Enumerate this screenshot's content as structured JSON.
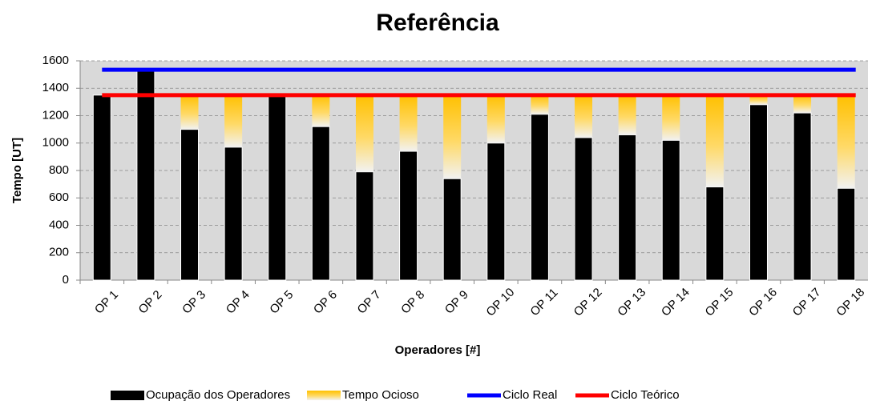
{
  "chart_data": {
    "type": "bar",
    "title": "Referência",
    "x_label": "Operadores [#]",
    "y_label": "Tempo [UT]",
    "categories": [
      "OP 1",
      "OP 2",
      "OP 3",
      "OP 4",
      "OP 5",
      "OP 6",
      "OP 7",
      "OP 8",
      "OP 9",
      "OP 10",
      "OP 11",
      "OP 12",
      "OP 13",
      "OP 14",
      "OP 15",
      "OP 16",
      "OP 17",
      "OP 18"
    ],
    "series": [
      {
        "name": "Ocupação dos Operadores",
        "color": "#000000",
        "values": [
          1350,
          1530,
          1100,
          970,
          1350,
          1120,
          790,
          940,
          740,
          1000,
          1210,
          1040,
          1060,
          1020,
          680,
          1280,
          1220,
          670
        ]
      },
      {
        "name": "Tempo Ocioso",
        "color": "#ffc000",
        "values": [
          0,
          0,
          250,
          380,
          0,
          230,
          560,
          410,
          610,
          350,
          140,
          310,
          290,
          330,
          670,
          70,
          130,
          680
        ]
      },
      {
        "name": "Ciclo Real",
        "color": "#0000ff",
        "type": "line",
        "value": 1535
      },
      {
        "name": "Ciclo Teórico",
        "color": "#ff0000",
        "type": "line",
        "value": 1350
      }
    ],
    "ylim": [
      0,
      1600
    ],
    "yticks": [
      0,
      200,
      400,
      600,
      800,
      1000,
      1200,
      1400,
      1600
    ],
    "grid": true,
    "legend": "bottom",
    "stacked": true
  }
}
